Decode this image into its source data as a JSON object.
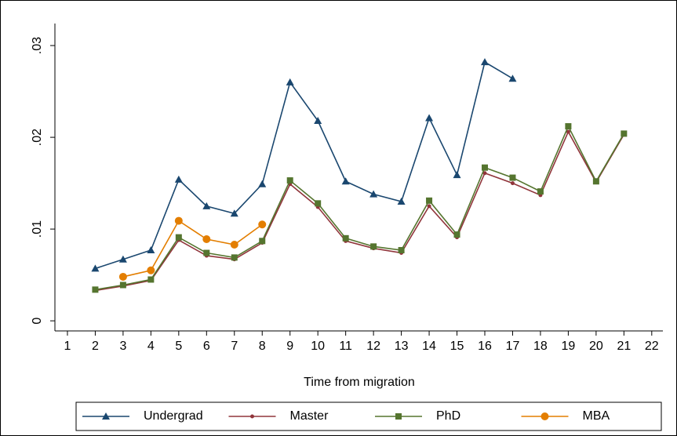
{
  "chart_data": {
    "type": "line",
    "xlabel": "Time from migration",
    "x": [
      2,
      3,
      4,
      5,
      6,
      7,
      8,
      9,
      10,
      11,
      12,
      13,
      14,
      15,
      16,
      17,
      18,
      19,
      20,
      21
    ],
    "xlim": [
      0.55,
      22.4
    ],
    "xticks": [
      1,
      2,
      3,
      4,
      5,
      6,
      7,
      8,
      9,
      10,
      11,
      12,
      13,
      14,
      15,
      16,
      17,
      18,
      19,
      20,
      21,
      22
    ],
    "ylim": [
      -0.0011,
      0.0324
    ],
    "yticks": [
      0,
      {
        "value": 0.01,
        "label": ".01"
      },
      {
        "value": 0.02,
        "label": ".02"
      },
      {
        "value": 0.03,
        "label": ".03"
      }
    ],
    "grid": false,
    "legend": "bottom",
    "series": [
      {
        "name": "Undergrad",
        "color": "#1a476f",
        "marker": "triangle",
        "values": [
          0.0057,
          0.0067,
          0.0077,
          0.0154,
          0.0125,
          0.0117,
          0.0149,
          0.026,
          0.0218,
          0.0152,
          0.0138,
          0.013,
          0.0221,
          0.0159,
          0.0282,
          0.0264,
          null,
          null,
          null,
          null
        ]
      },
      {
        "name": "Master",
        "color": "#90353b",
        "marker": "dot",
        "values": [
          0.0033,
          0.0038,
          0.0044,
          0.0088,
          0.0071,
          0.0067,
          0.0085,
          0.0149,
          0.0124,
          0.0087,
          0.0079,
          0.0074,
          0.0125,
          0.0091,
          0.0161,
          0.015,
          0.0137,
          0.0206,
          0.0151,
          0.0203
        ]
      },
      {
        "name": "PhD",
        "color": "#55752f",
        "marker": "square",
        "values": [
          0.0034,
          0.0039,
          0.0045,
          0.0091,
          0.0074,
          0.0069,
          0.0087,
          0.0153,
          0.0128,
          0.009,
          0.0081,
          0.0077,
          0.0131,
          0.0094,
          0.0167,
          0.0156,
          0.0141,
          0.0212,
          0.0152,
          0.0204
        ]
      },
      {
        "name": "MBA",
        "color": "#e37e00",
        "marker": "circle",
        "values": [
          null,
          0.0048,
          0.0055,
          0.0109,
          0.0089,
          0.0083,
          0.0105,
          null,
          null,
          null,
          null,
          null,
          null,
          null,
          null,
          null,
          null,
          null,
          null,
          null
        ]
      }
    ]
  }
}
